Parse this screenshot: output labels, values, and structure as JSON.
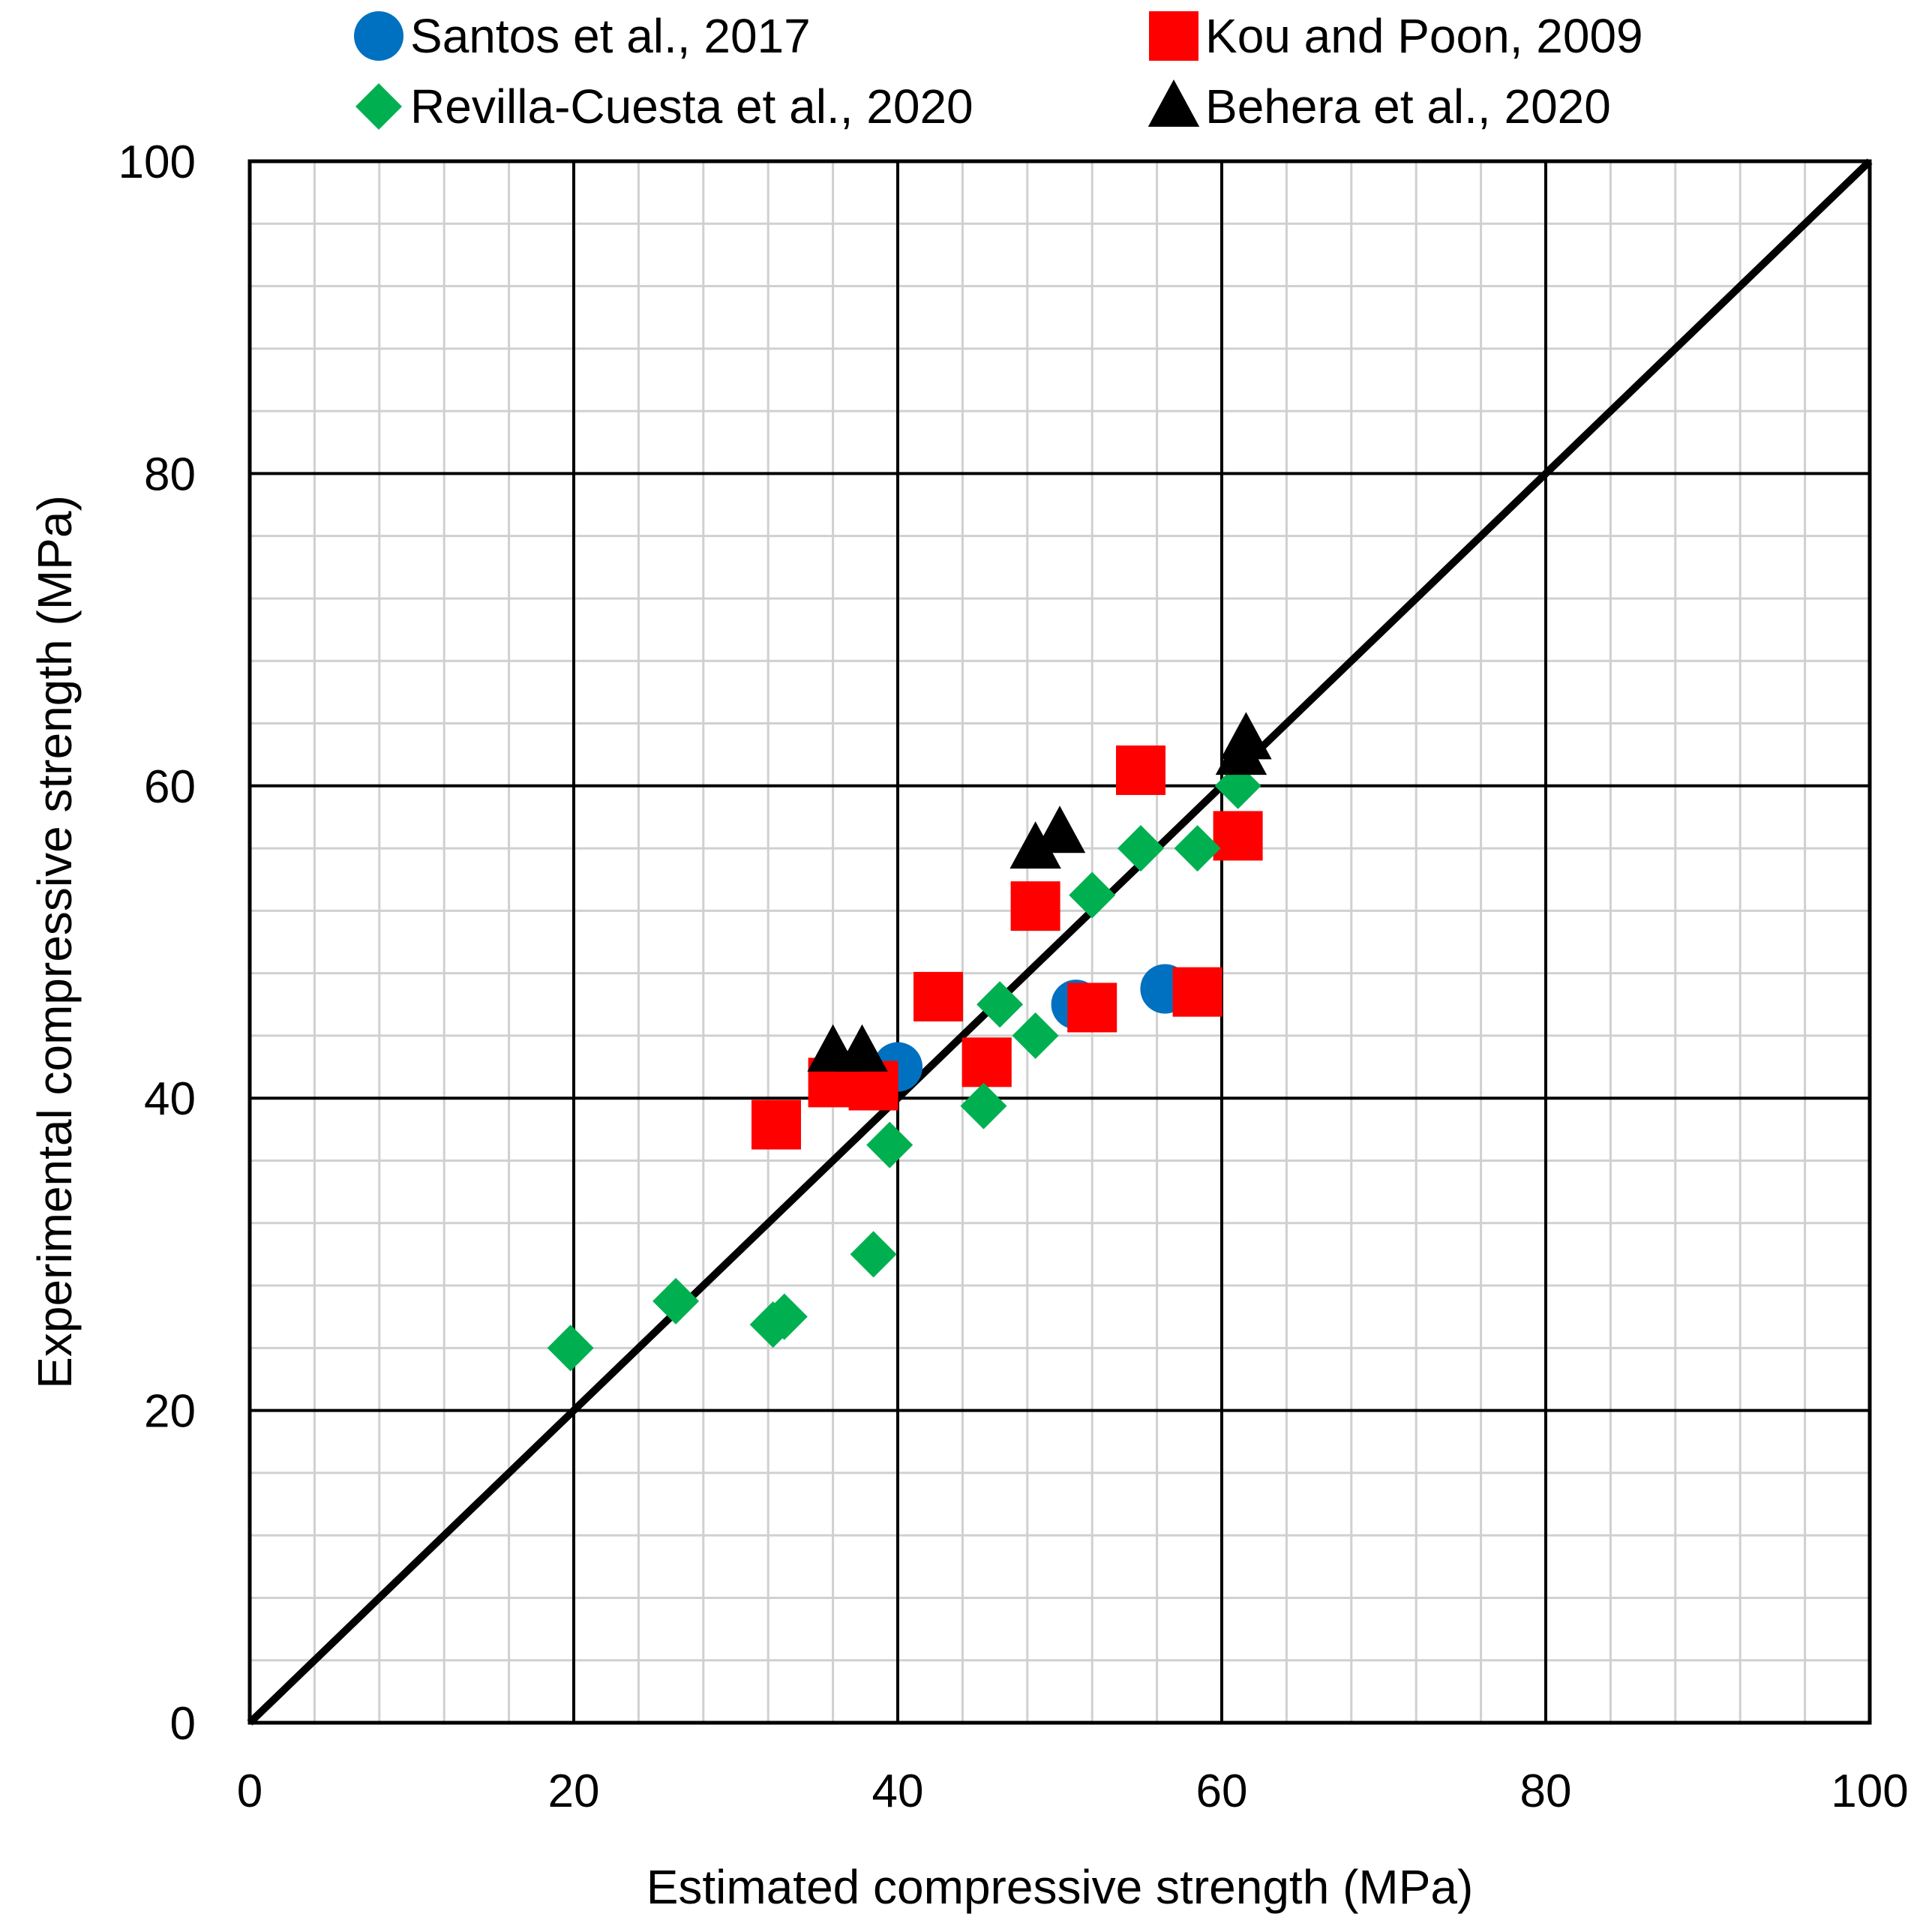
{
  "chart_data": {
    "type": "scatter",
    "title": "",
    "xlabel": "Estimated compressive strength (MPa)",
    "ylabel": "Experimental compressive strength (MPa)",
    "xlim": [
      0,
      100
    ],
    "ylim": [
      0,
      100
    ],
    "major_ticks": [
      0,
      20,
      40,
      60,
      80,
      100
    ],
    "x_tick_labels": [
      "0",
      "20",
      "40",
      "60",
      "80",
      "100"
    ],
    "y_tick_labels": [
      "0",
      "20",
      "40",
      "60",
      "80",
      "100"
    ],
    "minor_tick_step": 4,
    "grid": true,
    "legend_position": "top",
    "reference_line": {
      "label": "y = x",
      "from": [
        0,
        0
      ],
      "to": [
        100,
        100
      ],
      "color": "#000000"
    },
    "series": [
      {
        "name": "Santos et al., 2017",
        "marker": "circle",
        "color": "#0070C0",
        "points": [
          [
            40.0,
            42.0
          ],
          [
            51.0,
            46.0
          ],
          [
            56.5,
            47.0
          ]
        ]
      },
      {
        "name": "Kou and Poon, 2009",
        "marker": "square",
        "color": "#FF0000",
        "points": [
          [
            32.5,
            38.3
          ],
          [
            36.0,
            41.0
          ],
          [
            38.5,
            40.8
          ],
          [
            42.5,
            46.5
          ],
          [
            45.5,
            42.3
          ],
          [
            48.5,
            52.3
          ],
          [
            52.0,
            45.8
          ],
          [
            55.0,
            61.0
          ],
          [
            58.5,
            46.8
          ],
          [
            61.0,
            56.8
          ]
        ]
      },
      {
        "name": "Revilla-Cuesta et al., 2020",
        "marker": "diamond",
        "color": "#00B050",
        "points": [
          [
            19.8,
            24.0
          ],
          [
            26.3,
            27.0
          ],
          [
            32.3,
            25.5
          ],
          [
            33.0,
            26.0
          ],
          [
            38.5,
            30.0
          ],
          [
            39.5,
            37.0
          ],
          [
            45.3,
            39.5
          ],
          [
            46.3,
            46.0
          ],
          [
            48.5,
            44.0
          ],
          [
            52.0,
            53.0
          ],
          [
            55.0,
            56.0
          ],
          [
            58.5,
            56.0
          ],
          [
            61.0,
            60.0
          ]
        ]
      },
      {
        "name": "Behera et al., 2020",
        "marker": "triangle",
        "color": "#000000",
        "points": [
          [
            36.0,
            43.0
          ],
          [
            37.8,
            43.0
          ],
          [
            48.5,
            56.0
          ],
          [
            50.0,
            57.0
          ],
          [
            61.2,
            62.0
          ],
          [
            61.5,
            63.0
          ]
        ]
      }
    ]
  }
}
